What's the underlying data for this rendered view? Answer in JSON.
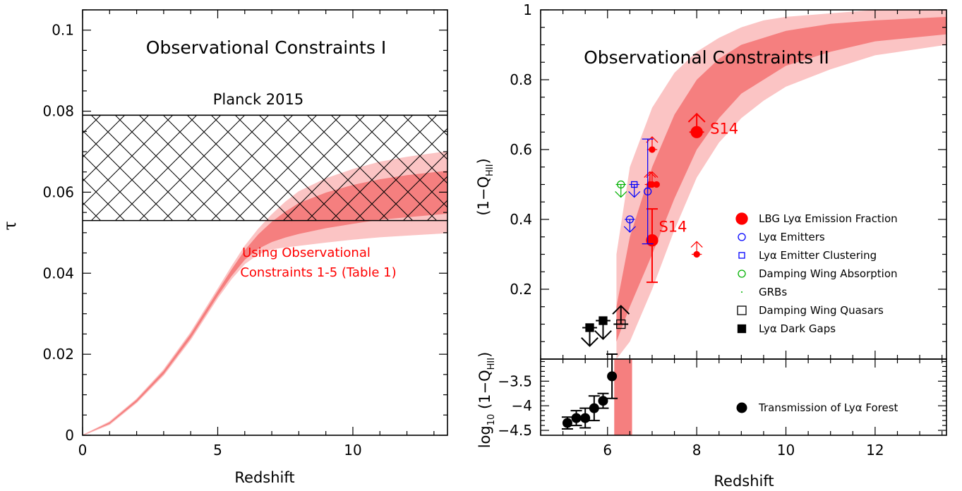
{
  "colors": {
    "band_inner": "#f57f7f",
    "band_outer": "#fbc4c4",
    "red": "#ff0000",
    "blue": "#0000ff",
    "green": "#00b000",
    "black": "#000000"
  },
  "chart_data": [
    {
      "panel": "left",
      "type": "area",
      "title": "Observational Constraints I",
      "xlabel": "Redshift",
      "ylabel": "τ",
      "xlim": [
        0,
        13.5
      ],
      "ylim": [
        0,
        0.105
      ],
      "xticks": [
        0,
        5,
        10
      ],
      "yticks": [
        0,
        0.02,
        0.04,
        0.06,
        0.08,
        0.1
      ],
      "ytick_labels": [
        "0",
        "0.02",
        "0.04",
        "0.06",
        "0.08",
        "0.1"
      ],
      "planck": {
        "label": "Planck 2015",
        "lower": 0.053,
        "upper": 0.079
      },
      "annotation": [
        "Using Observational",
        "Constraints 1-5 (Table 1)"
      ],
      "model_band": {
        "z": [
          0,
          1,
          2,
          3,
          4,
          5,
          5.5,
          6,
          6.5,
          7,
          7.5,
          8,
          9,
          10,
          11,
          12,
          13.5
        ],
        "mid": [
          0,
          0.003,
          0.0085,
          0.0155,
          0.0245,
          0.035,
          0.04,
          0.0445,
          0.0478,
          0.0502,
          0.052,
          0.0535,
          0.0555,
          0.057,
          0.0582,
          0.059,
          0.06
        ],
        "inner_hw": [
          0,
          0.0002,
          0.0003,
          0.0004,
          0.0005,
          0.0006,
          0.0008,
          0.0012,
          0.0018,
          0.0025,
          0.0032,
          0.0038,
          0.0044,
          0.0048,
          0.005,
          0.0052,
          0.0053
        ],
        "outer_hw": [
          0,
          0.0003,
          0.0004,
          0.0006,
          0.0008,
          0.001,
          0.0014,
          0.0021,
          0.003,
          0.0042,
          0.0055,
          0.0066,
          0.0078,
          0.0086,
          0.0092,
          0.0096,
          0.01
        ]
      }
    },
    {
      "panel": "right-top",
      "type": "scatter",
      "title": "Observational Constraints II",
      "xlabel": "Redshift",
      "ylabel": "(1−Q",
      "ylabel_sub": "HII",
      "ylabel_end": ")",
      "xlim": [
        4.5,
        13.6
      ],
      "ylim": [
        0,
        1
      ],
      "xticks": [
        6,
        8,
        10,
        12
      ],
      "yticks": [
        0.2,
        0.4,
        0.6,
        0.8,
        1
      ],
      "ytick_labels": [
        "0.2",
        "0.4",
        "0.6",
        "0.8",
        "1"
      ],
      "model_band": {
        "z": [
          6.2,
          6.5,
          7,
          7.5,
          8,
          8.5,
          9,
          9.5,
          10,
          11,
          12,
          13.6
        ],
        "outer_low": [
          0,
          0.05,
          0.2,
          0.37,
          0.52,
          0.62,
          0.69,
          0.74,
          0.78,
          0.83,
          0.87,
          0.9
        ],
        "inner_low": [
          0.05,
          0.15,
          0.3,
          0.46,
          0.6,
          0.69,
          0.76,
          0.8,
          0.84,
          0.88,
          0.91,
          0.93
        ],
        "inner_high": [
          0.15,
          0.35,
          0.55,
          0.7,
          0.8,
          0.86,
          0.9,
          0.92,
          0.94,
          0.96,
          0.97,
          0.98
        ],
        "outer_high": [
          0.3,
          0.55,
          0.72,
          0.82,
          0.88,
          0.92,
          0.95,
          0.97,
          0.98,
          0.99,
          1.0,
          1.0
        ]
      },
      "labels": [
        {
          "text": "S14",
          "z": 8.3,
          "y": 0.645
        },
        {
          "text": "S14",
          "z": 7.15,
          "y": 0.365
        }
      ],
      "points": [
        {
          "series": "lbg_big",
          "z": 8.0,
          "y": 0.65,
          "limit": "lower"
        },
        {
          "series": "lbg_big",
          "z": 7.0,
          "y": 0.34,
          "yerr": [
            0.12,
            0.09
          ]
        },
        {
          "series": "lbg_small",
          "z": 7.0,
          "y": 0.6,
          "limit": "lower"
        },
        {
          "series": "lbg_small",
          "z": 7.0,
          "y": 0.5,
          "limit": "lower"
        },
        {
          "series": "lbg_small",
          "z": 6.95,
          "y": 0.5,
          "limit": "lower"
        },
        {
          "series": "lbg_small",
          "z": 7.1,
          "y": 0.5
        },
        {
          "series": "lbg_small",
          "z": 8.0,
          "y": 0.3,
          "limit": "lower"
        },
        {
          "series": "lae",
          "z": 6.9,
          "y": 0.48,
          "yerr": [
            0.15,
            0.15
          ]
        },
        {
          "series": "lae",
          "z": 6.5,
          "y": 0.4,
          "limit": "upper"
        },
        {
          "series": "lae_cluster",
          "z": 6.6,
          "y": 0.5,
          "limit": "upper"
        },
        {
          "series": "damping",
          "z": 6.3,
          "y": 0.5,
          "limit": "upper"
        },
        {
          "series": "dw_quasar",
          "z": 6.3,
          "y": 0.1,
          "limit": "lower"
        },
        {
          "series": "dark_gap",
          "z": 5.6,
          "y": 0.09,
          "limit": "upper"
        },
        {
          "series": "dark_gap",
          "z": 5.9,
          "y": 0.11,
          "limit": "upper"
        }
      ],
      "legend": [
        {
          "key": "lbg_big",
          "label": "LBG Lyα Emission Fraction"
        },
        {
          "key": "lae",
          "label": "Lyα Emitters"
        },
        {
          "key": "lae_cluster",
          "label": "Lyα Emitter Clustering"
        },
        {
          "key": "damping",
          "label": "Damping Wing Absorption"
        },
        {
          "key": "grb",
          "label": "GRBs"
        },
        {
          "key": "dw_quasar",
          "label": "Damping Wing Quasars"
        },
        {
          "key": "dark_gap",
          "label": "Lyα Dark Gaps"
        }
      ]
    },
    {
      "panel": "right-bottom",
      "type": "scatter",
      "xlabel": "Redshift",
      "ylabel": "log",
      "ylabel_sub": "10",
      "ylabel_mid": " (1−Q",
      "ylabel_sub2": "HII",
      "ylabel_end": ")",
      "xlim": [
        4.5,
        13.6
      ],
      "ylim": [
        -4.6,
        -3.05
      ],
      "yticks": [
        -3.5,
        -4,
        -4.5
      ],
      "ytick_labels": [
        "−3.5",
        "−4",
        "−4.5"
      ],
      "band_z": [
        6.15,
        6.55
      ],
      "points": [
        {
          "z": 5.1,
          "y": -4.35,
          "yerr": 0.12
        },
        {
          "z": 5.3,
          "y": -4.25,
          "yerr": 0.15
        },
        {
          "z": 5.5,
          "y": -4.25,
          "yerr": 0.2
        },
        {
          "z": 5.7,
          "y": -4.05,
          "yerr": 0.25
        },
        {
          "z": 5.9,
          "y": -3.9,
          "yerr": 0.15
        },
        {
          "z": 6.1,
          "y": -3.4,
          "yerr": 0.45
        }
      ],
      "legend": [
        {
          "key": "transmission",
          "label": "Transmission of Lyα Forest"
        }
      ]
    }
  ]
}
